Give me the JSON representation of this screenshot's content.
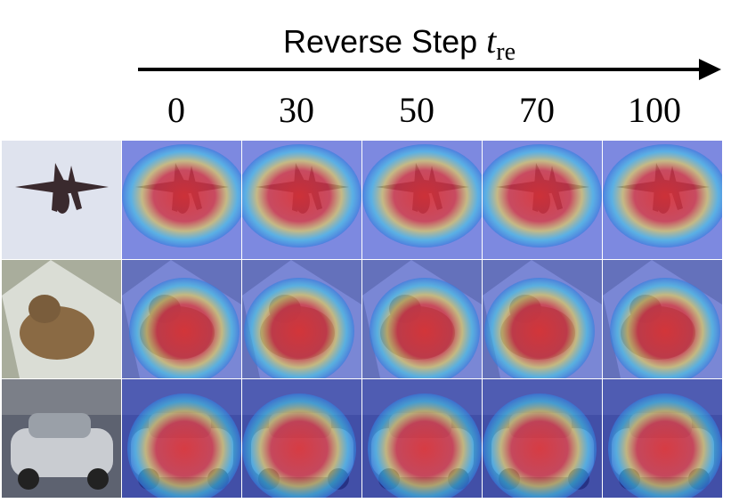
{
  "title": {
    "text": "Reverse Step ",
    "var": "t",
    "subscript": "re"
  },
  "steps": [
    "0",
    "30",
    "50",
    "70",
    "100"
  ],
  "rows": [
    {
      "subject": "airplane",
      "bg": "#dfe3ee",
      "heat_shape": "wide"
    },
    {
      "subject": "cat",
      "bg": "#a9ad9c",
      "heat_shape": "low"
    },
    {
      "subject": "car",
      "bg": "#5d6270",
      "heat_shape": "center"
    }
  ],
  "colors": {
    "heat_low": "#2b3fd6",
    "heat_mid": "#3fd0e8",
    "heat_warm": "#f5d94a",
    "heat_high": "#e8302a"
  }
}
